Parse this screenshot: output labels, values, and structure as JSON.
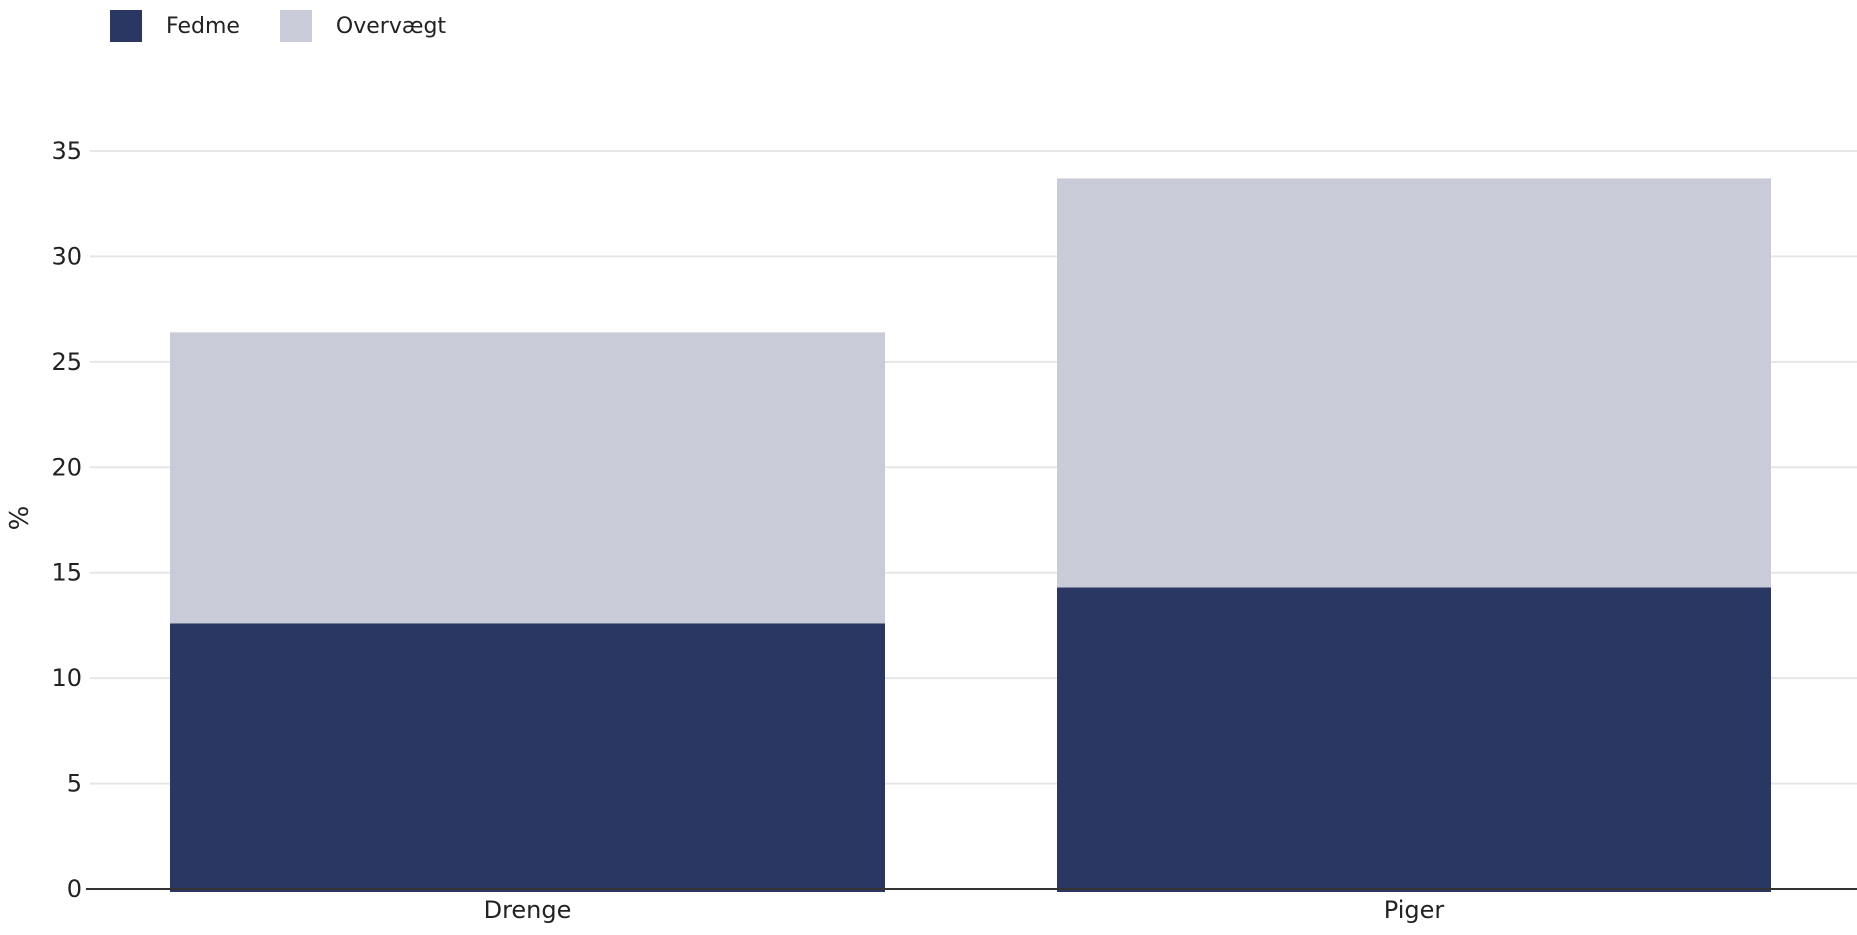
{
  "chart_data": {
    "type": "bar",
    "stacked": true,
    "categories": [
      "Drenge",
      "Piger"
    ],
    "series": [
      {
        "name": "Fedme",
        "values": [
          12.6,
          14.3
        ],
        "color": "#2a3763"
      },
      {
        "name": "Overvægt",
        "values": [
          13.8,
          19.4
        ],
        "color": "#c9ccd8"
      }
    ],
    "ylabel": "%",
    "ylim": [
      0,
      35
    ],
    "yticks": [
      0,
      5,
      10,
      15,
      20,
      25,
      30,
      35
    ],
    "grid": true,
    "legend_position": "top-left",
    "gridline_color": "#e6e6e6",
    "axis_color": "#333333"
  }
}
